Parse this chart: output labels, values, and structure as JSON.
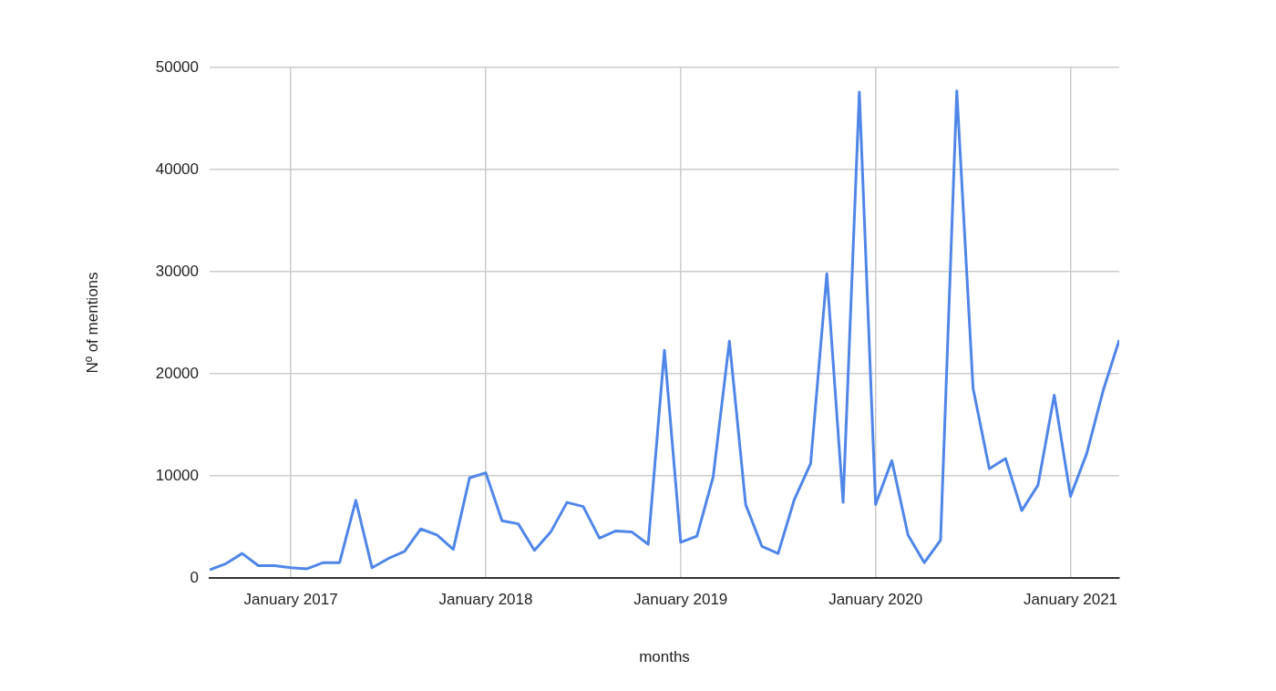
{
  "chart_data": {
    "type": "line",
    "xlabel": "months",
    "ylabel": "Nº of mentions",
    "x": [
      "2016-08",
      "2016-09",
      "2016-10",
      "2016-11",
      "2016-12",
      "2017-01",
      "2017-02",
      "2017-03",
      "2017-04",
      "2017-05",
      "2017-06",
      "2017-07",
      "2017-08",
      "2017-09",
      "2017-10",
      "2017-11",
      "2017-12",
      "2018-01",
      "2018-02",
      "2018-03",
      "2018-04",
      "2018-05",
      "2018-06",
      "2018-07",
      "2018-08",
      "2018-09",
      "2018-10",
      "2018-11",
      "2018-12",
      "2019-01",
      "2019-02",
      "2019-03",
      "2019-04",
      "2019-05",
      "2019-06",
      "2019-07",
      "2019-08",
      "2019-09",
      "2019-10",
      "2019-11",
      "2019-12",
      "2020-01",
      "2020-02",
      "2020-03",
      "2020-04",
      "2020-05",
      "2020-06",
      "2020-07",
      "2020-08",
      "2020-09",
      "2020-10",
      "2020-11",
      "2020-12",
      "2021-01",
      "2021-02",
      "2021-03",
      "2021-04"
    ],
    "series": [
      {
        "color": "#4f86e8",
        "values": [
          800,
          1400,
          2400,
          1200,
          1200,
          1000,
          900,
          1500,
          1500,
          7600,
          1000,
          1900,
          2600,
          4800,
          4200,
          2800,
          9800,
          10300,
          5600,
          5300,
          2700,
          4500,
          7400,
          7000,
          3900,
          4600,
          4500,
          3300,
          22300,
          3500,
          4100,
          9900,
          23200,
          7200,
          3100,
          2400,
          7700,
          11200,
          29800,
          7400,
          47600,
          7200,
          11500,
          4200,
          1500,
          3700,
          47700,
          18600,
          10700,
          11700,
          6600,
          9100,
          17900,
          8000,
          12200,
          18300,
          23300
        ]
      }
    ],
    "xlim": [
      "2016-08",
      "2021-04"
    ],
    "xticks": [
      {
        "value": "2017-01",
        "label": "January 2017"
      },
      {
        "value": "2018-01",
        "label": "January 2018"
      },
      {
        "value": "2019-01",
        "label": "January 2019"
      },
      {
        "value": "2020-01",
        "label": "January 2020"
      },
      {
        "value": "2021-01",
        "label": "January 2021"
      }
    ],
    "ylim": [
      0,
      50000
    ],
    "yticks": [
      0,
      10000,
      20000,
      30000,
      40000,
      50000
    ],
    "grid": true,
    "legend": false,
    "marker": "none",
    "line_style": "solid"
  }
}
